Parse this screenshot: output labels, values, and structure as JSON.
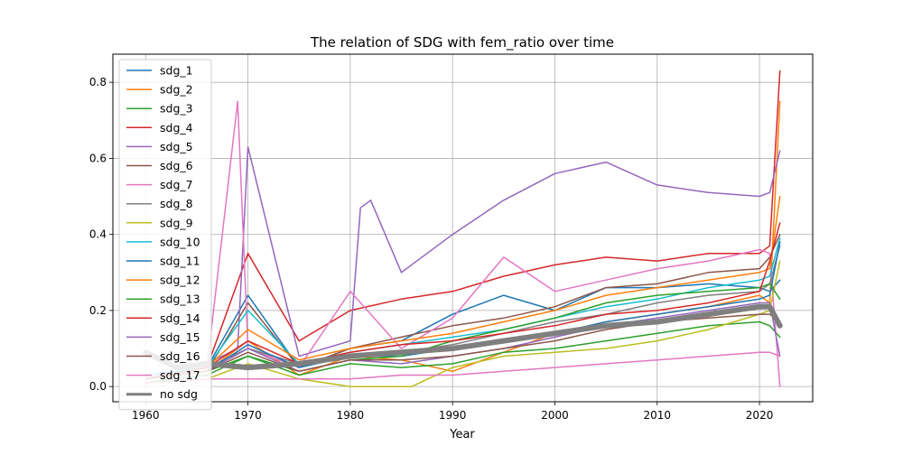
{
  "chart_data": {
    "type": "line",
    "title": "The relation of SDG with fem_ratio over time",
    "xlabel": "Year",
    "ylabel": "",
    "xlim": [
      1956.8,
      2025.2
    ],
    "ylim": [
      -0.04,
      0.874
    ],
    "xticks": [
      1960,
      1970,
      1980,
      1990,
      2000,
      2010,
      2020
    ],
    "yticks": [
      0.0,
      0.2,
      0.4,
      0.6,
      0.8
    ],
    "grid": true,
    "legend_position": "upper-left",
    "series": [
      {
        "name": "sdg_1",
        "color": "#1f77b4",
        "x": [
          1960,
          1966,
          1970,
          1975,
          1980,
          1985,
          1990,
          1995,
          2000,
          2005,
          2010,
          2015,
          2020,
          2021,
          2022
        ],
        "y": [
          0.03,
          0.05,
          0.24,
          0.05,
          0.1,
          0.12,
          0.19,
          0.24,
          0.2,
          0.26,
          0.26,
          0.27,
          0.26,
          0.25,
          0.28
        ]
      },
      {
        "name": "sdg_2",
        "color": "#ff7f0e",
        "x": [
          1960,
          1966,
          1970,
          1975,
          1980,
          1985,
          1990,
          1995,
          2000,
          2005,
          2010,
          2015,
          2020,
          2021,
          2022
        ],
        "y": [
          0.02,
          0.04,
          0.12,
          0.03,
          0.08,
          0.07,
          0.04,
          0.09,
          0.14,
          0.17,
          0.19,
          0.21,
          0.24,
          0.22,
          0.75
        ]
      },
      {
        "name": "sdg_3",
        "color": "#2ca02c",
        "x": [
          1960,
          1966,
          1970,
          1975,
          1980,
          1985,
          1990,
          1995,
          2000,
          2005,
          2010,
          2015,
          2020,
          2021,
          2022
        ],
        "y": [
          0.01,
          0.03,
          0.08,
          0.03,
          0.06,
          0.05,
          0.06,
          0.09,
          0.1,
          0.12,
          0.14,
          0.16,
          0.17,
          0.16,
          0.13
        ]
      },
      {
        "name": "sdg_4",
        "color": "#d62728",
        "x": [
          1960,
          1966,
          1970,
          1975,
          1980,
          1985,
          1990,
          1995,
          2000,
          2005,
          2010,
          2015,
          2020,
          2021,
          2022
        ],
        "y": [
          0.02,
          0.05,
          0.35,
          0.12,
          0.2,
          0.23,
          0.25,
          0.29,
          0.32,
          0.34,
          0.33,
          0.35,
          0.35,
          0.37,
          0.83
        ]
      },
      {
        "name": "sdg_5",
        "color": "#9467bd",
        "x": [
          1960,
          1966,
          1969,
          1970,
          1975,
          1980,
          1981,
          1982,
          1985,
          1990,
          1995,
          2000,
          2005,
          2010,
          2015,
          2020,
          2021,
          2022
        ],
        "y": [
          0.02,
          0.06,
          0.1,
          0.63,
          0.08,
          0.12,
          0.47,
          0.49,
          0.3,
          0.4,
          0.49,
          0.56,
          0.59,
          0.53,
          0.51,
          0.5,
          0.51,
          0.62
        ]
      },
      {
        "name": "sdg_6",
        "color": "#8c564b",
        "x": [
          1960,
          1966,
          1970,
          1975,
          1980,
          1985,
          1990,
          1995,
          2000,
          2005,
          2010,
          2015,
          2020,
          2021,
          2022
        ],
        "y": [
          0.02,
          0.04,
          0.22,
          0.05,
          0.1,
          0.13,
          0.16,
          0.18,
          0.21,
          0.26,
          0.27,
          0.3,
          0.31,
          0.34,
          0.4
        ]
      },
      {
        "name": "sdg_7",
        "color": "#e377c2",
        "x": [
          1960,
          1966,
          1969,
          1970,
          1975,
          1980,
          1985,
          1990,
          1995,
          2000,
          2005,
          2010,
          2015,
          2020,
          2021,
          2022
        ],
        "y": [
          0.02,
          0.05,
          0.75,
          0.1,
          0.05,
          0.25,
          0.1,
          0.18,
          0.34,
          0.25,
          0.28,
          0.31,
          0.33,
          0.36,
          0.35,
          0.0
        ]
      },
      {
        "name": "sdg_8",
        "color": "#7f7f7f",
        "x": [
          1960,
          1966,
          1970,
          1975,
          1980,
          1985,
          1990,
          1995,
          2000,
          2005,
          2010,
          2015,
          2020,
          2021,
          2022
        ],
        "y": [
          0.02,
          0.05,
          0.1,
          0.06,
          0.08,
          0.09,
          0.11,
          0.14,
          0.17,
          0.19,
          0.22,
          0.24,
          0.25,
          0.27,
          0.37
        ]
      },
      {
        "name": "sdg_9",
        "color": "#bcbd22",
        "x": [
          1960,
          1966,
          1970,
          1975,
          1980,
          1983,
          1986,
          1990,
          1995,
          2000,
          2005,
          2010,
          2015,
          2020,
          2021,
          2022
        ],
        "y": [
          0.01,
          0.02,
          0.06,
          0.02,
          0.0,
          0.0,
          0.0,
          0.05,
          0.08,
          0.09,
          0.1,
          0.12,
          0.15,
          0.19,
          0.2,
          0.33
        ]
      },
      {
        "name": "sdg_10",
        "color": "#17becf",
        "x": [
          1960,
          1966,
          1970,
          1975,
          1980,
          1985,
          1990,
          1995,
          2000,
          2005,
          2010,
          2015,
          2020,
          2021,
          2022
        ],
        "y": [
          0.03,
          0.05,
          0.2,
          0.06,
          0.09,
          0.11,
          0.13,
          0.15,
          0.18,
          0.21,
          0.23,
          0.26,
          0.28,
          0.29,
          0.39
        ]
      },
      {
        "name": "sdg_11",
        "color": "#1f77b4",
        "x": [
          1960,
          1966,
          1970,
          1975,
          1980,
          1985,
          1990,
          1995,
          2000,
          2005,
          2010,
          2015,
          2020,
          2021,
          2022
        ],
        "y": [
          0.02,
          0.04,
          0.11,
          0.05,
          0.08,
          0.08,
          0.1,
          0.12,
          0.14,
          0.17,
          0.19,
          0.21,
          0.23,
          0.24,
          0.38
        ]
      },
      {
        "name": "sdg_12",
        "color": "#ff7f0e",
        "x": [
          1960,
          1966,
          1970,
          1975,
          1980,
          1985,
          1990,
          1995,
          2000,
          2005,
          2010,
          2015,
          2020,
          2021,
          2022
        ],
        "y": [
          0.02,
          0.05,
          0.15,
          0.07,
          0.1,
          0.12,
          0.14,
          0.17,
          0.2,
          0.24,
          0.26,
          0.28,
          0.3,
          0.31,
          0.5
        ]
      },
      {
        "name": "sdg_13",
        "color": "#2ca02c",
        "x": [
          1960,
          1966,
          1970,
          1975,
          1980,
          1985,
          1990,
          1995,
          2000,
          2005,
          2010,
          2015,
          2020,
          2021,
          2022
        ],
        "y": [
          0.02,
          0.04,
          0.08,
          0.04,
          0.07,
          0.08,
          0.12,
          0.15,
          0.18,
          0.22,
          0.24,
          0.25,
          0.26,
          0.27,
          0.23
        ]
      },
      {
        "name": "sdg_14",
        "color": "#d62728",
        "x": [
          1960,
          1966,
          1970,
          1975,
          1980,
          1985,
          1990,
          1995,
          2000,
          2005,
          2010,
          2015,
          2020,
          2021,
          2022
        ],
        "y": [
          0.02,
          0.05,
          0.12,
          0.06,
          0.09,
          0.11,
          0.12,
          0.14,
          0.16,
          0.19,
          0.2,
          0.22,
          0.25,
          0.33,
          0.43
        ]
      },
      {
        "name": "sdg_15",
        "color": "#9467bd",
        "x": [
          1960,
          1966,
          1970,
          1975,
          1980,
          1985,
          1990,
          1995,
          2000,
          2005,
          2010,
          2015,
          2020,
          2021,
          2022
        ],
        "y": [
          0.02,
          0.04,
          0.1,
          0.04,
          0.07,
          0.06,
          0.08,
          0.1,
          0.13,
          0.16,
          0.18,
          0.2,
          0.22,
          0.22,
          0.08
        ]
      },
      {
        "name": "sdg_16",
        "color": "#8c564b",
        "x": [
          1960,
          1966,
          1970,
          1975,
          1980,
          1985,
          1990,
          1995,
          2000,
          2005,
          2010,
          2015,
          2020,
          2021,
          2022
        ],
        "y": [
          0.02,
          0.04,
          0.09,
          0.04,
          0.07,
          0.07,
          0.08,
          0.1,
          0.12,
          0.15,
          0.17,
          0.18,
          0.19,
          0.19,
          0.17
        ]
      },
      {
        "name": "sdg_17",
        "color": "#e377c2",
        "x": [
          1960,
          1966,
          1970,
          1975,
          1980,
          1985,
          1990,
          1995,
          2000,
          2005,
          2010,
          2015,
          2020,
          2021,
          2022
        ],
        "y": [
          0.01,
          0.02,
          0.02,
          0.02,
          0.02,
          0.03,
          0.03,
          0.04,
          0.05,
          0.06,
          0.07,
          0.08,
          0.09,
          0.09,
          0.08
        ]
      },
      {
        "name": "no sdg",
        "color": "#7f7f7f",
        "width": 6,
        "x": [
          1960,
          1963,
          1966,
          1970,
          1975,
          1980,
          1985,
          1990,
          1995,
          2000,
          2005,
          2010,
          2015,
          2020,
          2021,
          2022
        ],
        "y": [
          0.09,
          0.05,
          0.06,
          0.05,
          0.06,
          0.08,
          0.09,
          0.1,
          0.12,
          0.14,
          0.16,
          0.17,
          0.19,
          0.21,
          0.21,
          0.16
        ]
      }
    ]
  }
}
